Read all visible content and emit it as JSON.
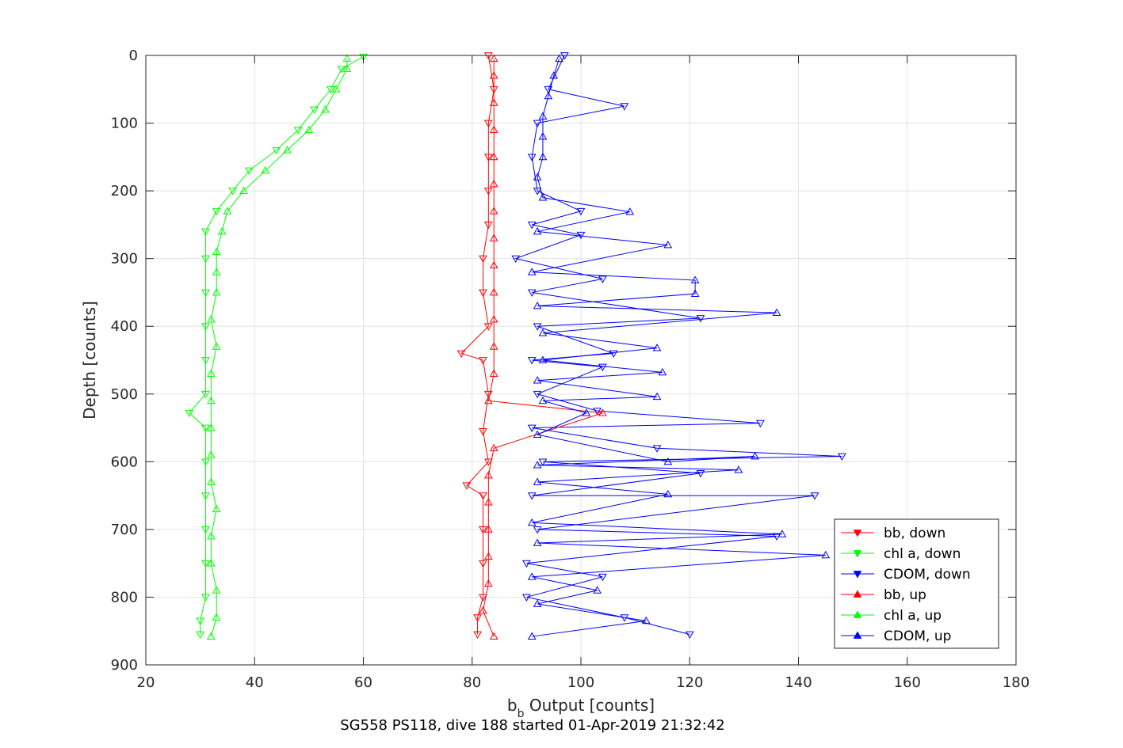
{
  "chart_data": {
    "type": "line",
    "markers": true,
    "xlabel_main": "b",
    "xlabel_sub": "b",
    "xlabel_rest": " Output [counts]",
    "ylabel": "Depth [counts]",
    "caption": "SG558 PS118, dive 188 started 01-Apr-2019 21:32:42",
    "xlim": [
      20,
      180
    ],
    "ylim": [
      0,
      900
    ],
    "y_reversed": true,
    "grid": true,
    "xticks": [
      20,
      40,
      60,
      80,
      100,
      120,
      140,
      160,
      180
    ],
    "yticks": [
      0,
      100,
      200,
      300,
      400,
      500,
      600,
      700,
      800,
      900
    ],
    "xtick_labels": [
      "20",
      "40",
      "60",
      "80",
      "100",
      "120",
      "140",
      "160",
      "180"
    ],
    "ytick_labels": [
      "0",
      "100",
      "200",
      "300",
      "400",
      "500",
      "600",
      "700",
      "800",
      "900"
    ],
    "legend_position": "bottom-right",
    "series": [
      {
        "name": "bb, down",
        "color": "#ff0000",
        "marker": "triangle-down",
        "points": [
          [
            83,
            0
          ],
          [
            84,
            50
          ],
          [
            83,
            100
          ],
          [
            83,
            150
          ],
          [
            83,
            200
          ],
          [
            83,
            250
          ],
          [
            82,
            300
          ],
          [
            82,
            350
          ],
          [
            83,
            400
          ],
          [
            78,
            440
          ],
          [
            82,
            450
          ],
          [
            83,
            500
          ],
          [
            82,
            555
          ],
          [
            83,
            600
          ],
          [
            79,
            635
          ],
          [
            82,
            650
          ],
          [
            82,
            700
          ],
          [
            82,
            750
          ],
          [
            82,
            800
          ],
          [
            81,
            830
          ],
          [
            81,
            855
          ]
        ]
      },
      {
        "name": "chl a, down",
        "color": "#00ff00",
        "marker": "triangle-down",
        "points": [
          [
            60,
            2
          ],
          [
            56,
            20
          ],
          [
            54,
            50
          ],
          [
            51,
            80
          ],
          [
            48,
            110
          ],
          [
            44,
            140
          ],
          [
            39,
            170
          ],
          [
            36,
            200
          ],
          [
            33,
            230
          ],
          [
            31,
            260
          ],
          [
            31,
            300
          ],
          [
            31,
            350
          ],
          [
            31,
            400
          ],
          [
            31,
            450
          ],
          [
            31,
            500
          ],
          [
            28,
            528
          ],
          [
            31,
            550
          ],
          [
            31,
            600
          ],
          [
            31,
            650
          ],
          [
            31,
            700
          ],
          [
            31,
            750
          ],
          [
            31,
            800
          ],
          [
            30,
            835
          ],
          [
            30,
            855
          ]
        ]
      },
      {
        "name": "CDOM, down",
        "color": "#0000ff",
        "marker": "triangle-down",
        "points": [
          [
            97,
            0
          ],
          [
            94,
            50
          ],
          [
            108,
            75
          ],
          [
            92,
            100
          ],
          [
            91,
            150
          ],
          [
            92,
            200
          ],
          [
            100,
            230
          ],
          [
            91,
            250
          ],
          [
            100,
            265
          ],
          [
            88,
            300
          ],
          [
            104,
            330
          ],
          [
            91,
            350
          ],
          [
            122,
            388
          ],
          [
            92,
            400
          ],
          [
            106,
            440
          ],
          [
            91,
            450
          ],
          [
            104,
            460
          ],
          [
            92,
            500
          ],
          [
            103,
            525
          ],
          [
            133,
            543
          ],
          [
            91,
            550
          ],
          [
            114,
            580
          ],
          [
            148,
            592
          ],
          [
            93,
            600
          ],
          [
            122,
            617
          ],
          [
            91,
            650
          ],
          [
            143,
            650
          ],
          [
            92,
            700
          ],
          [
            136,
            710
          ],
          [
            90,
            750
          ],
          [
            104,
            770
          ],
          [
            90,
            800
          ],
          [
            108,
            830
          ],
          [
            120,
            855
          ]
        ]
      },
      {
        "name": "bb, up",
        "color": "#ff0000",
        "marker": "triangle-up",
        "points": [
          [
            84,
            858
          ],
          [
            82,
            820
          ],
          [
            83,
            780
          ],
          [
            83,
            740
          ],
          [
            83,
            700
          ],
          [
            83,
            660
          ],
          [
            83,
            620
          ],
          [
            84,
            580
          ],
          [
            104,
            528
          ],
          [
            83,
            510
          ],
          [
            84,
            470
          ],
          [
            84,
            430
          ],
          [
            84,
            390
          ],
          [
            84,
            350
          ],
          [
            84,
            310
          ],
          [
            84,
            270
          ],
          [
            84,
            230
          ],
          [
            84,
            190
          ],
          [
            84,
            150
          ],
          [
            84,
            110
          ],
          [
            84,
            70
          ],
          [
            84,
            30
          ],
          [
            84,
            5
          ]
        ]
      },
      {
        "name": "chl a, up",
        "color": "#00ff00",
        "marker": "triangle-up",
        "points": [
          [
            32,
            858
          ],
          [
            33,
            830
          ],
          [
            33,
            790
          ],
          [
            32,
            750
          ],
          [
            32,
            710
          ],
          [
            33,
            670
          ],
          [
            32,
            630
          ],
          [
            32,
            590
          ],
          [
            32,
            550
          ],
          [
            32,
            510
          ],
          [
            32,
            470
          ],
          [
            33,
            430
          ],
          [
            32,
            390
          ],
          [
            33,
            350
          ],
          [
            33,
            320
          ],
          [
            33,
            290
          ],
          [
            34,
            260
          ],
          [
            35,
            230
          ],
          [
            38,
            200
          ],
          [
            42,
            170
          ],
          [
            46,
            140
          ],
          [
            50,
            110
          ],
          [
            53,
            80
          ],
          [
            55,
            50
          ],
          [
            57,
            20
          ],
          [
            57,
            5
          ]
        ]
      },
      {
        "name": "CDOM, up",
        "color": "#0000ff",
        "marker": "triangle-up",
        "points": [
          [
            91,
            858
          ],
          [
            112,
            835
          ],
          [
            92,
            810
          ],
          [
            103,
            790
          ],
          [
            91,
            770
          ],
          [
            145,
            738
          ],
          [
            92,
            720
          ],
          [
            137,
            707
          ],
          [
            91,
            690
          ],
          [
            116,
            648
          ],
          [
            92,
            630
          ],
          [
            129,
            612
          ],
          [
            92,
            605
          ],
          [
            132,
            592
          ],
          [
            116,
            600
          ],
          [
            92,
            560
          ],
          [
            101,
            528
          ],
          [
            93,
            510
          ],
          [
            114,
            504
          ],
          [
            92,
            480
          ],
          [
            115,
            468
          ],
          [
            93,
            450
          ],
          [
            114,
            432
          ],
          [
            93,
            410
          ],
          [
            136,
            380
          ],
          [
            92,
            370
          ],
          [
            121,
            352
          ],
          [
            121,
            332
          ],
          [
            91,
            320
          ],
          [
            116,
            280
          ],
          [
            92,
            260
          ],
          [
            109,
            231
          ],
          [
            93,
            210
          ],
          [
            92,
            180
          ],
          [
            93,
            150
          ],
          [
            93,
            120
          ],
          [
            93,
            90
          ],
          [
            94,
            60
          ],
          [
            95,
            30
          ],
          [
            96,
            5
          ]
        ]
      }
    ]
  }
}
